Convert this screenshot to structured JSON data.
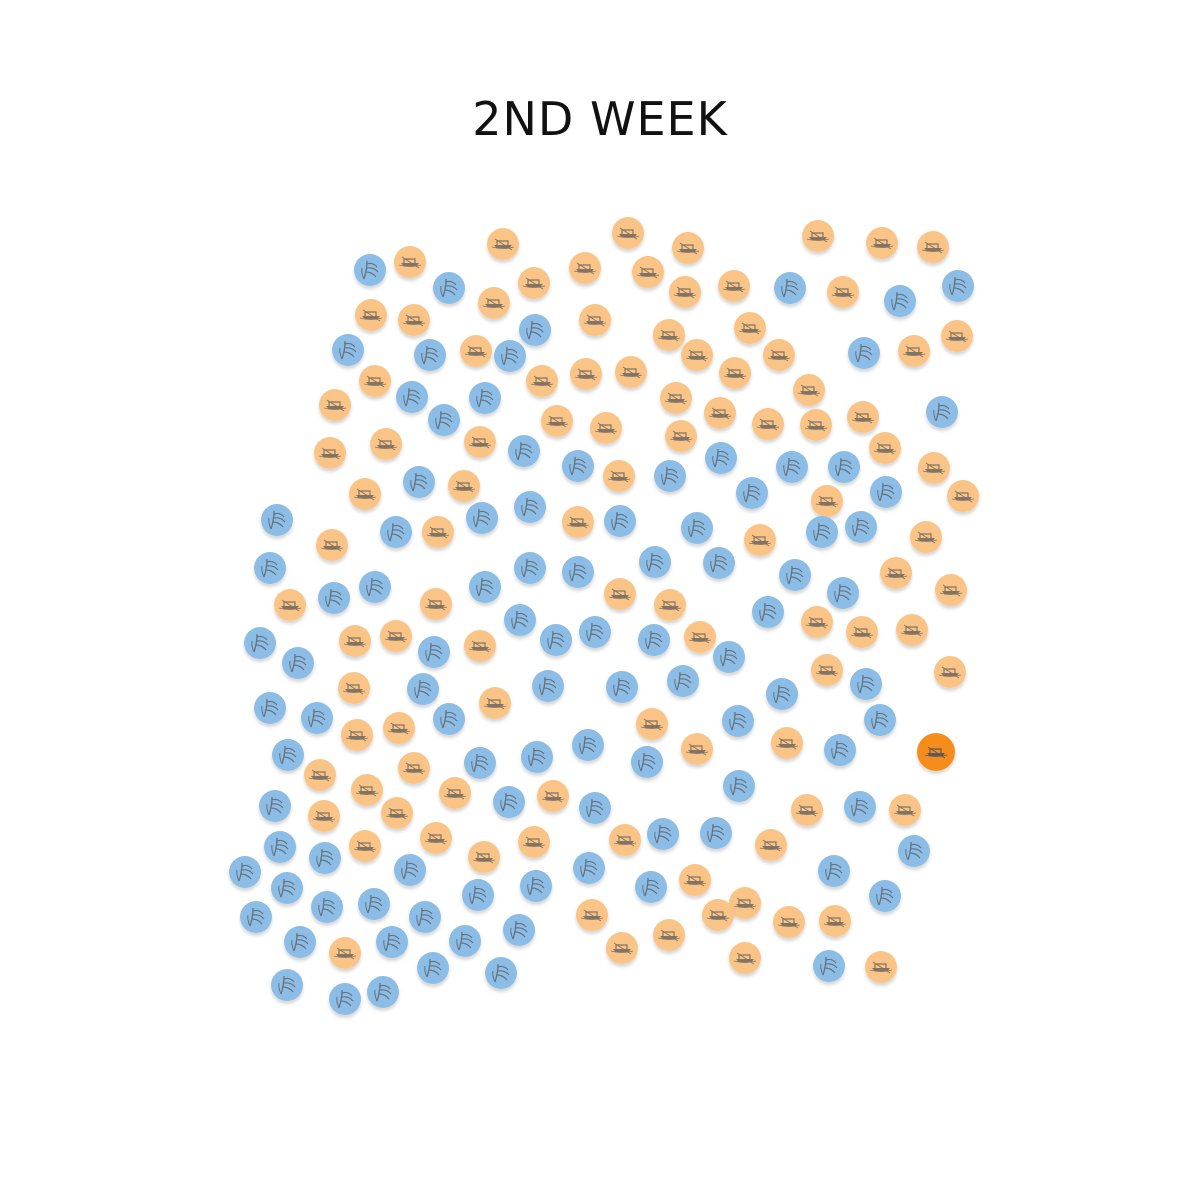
{
  "title": "2ND WEEK",
  "colors": {
    "boat": "#fbc487",
    "rice": "#8bbde6",
    "highlight": "#f58c1e",
    "icon": "#555555"
  },
  "icons": {
    "boat": "boat-icon",
    "rice": "rice-plant-icon"
  }
}
